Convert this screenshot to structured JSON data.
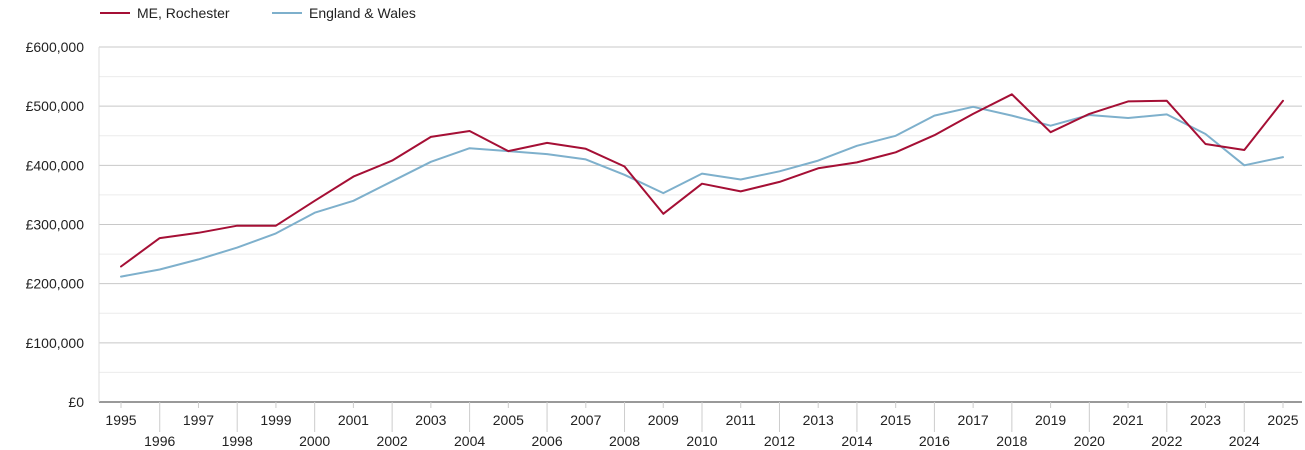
{
  "chart_data": {
    "type": "line",
    "title": "",
    "xlabel": "",
    "ylabel": "",
    "x": [
      1995,
      1996,
      1997,
      1998,
      1999,
      2000,
      2001,
      2002,
      2003,
      2004,
      2005,
      2006,
      2007,
      2008,
      2009,
      2010,
      2011,
      2012,
      2013,
      2014,
      2015,
      2016,
      2017,
      2018,
      2019,
      2020,
      2021,
      2022,
      2023,
      2024,
      2025
    ],
    "xtick_labels": [
      "1995",
      "1996",
      "1997",
      "1998",
      "1999",
      "2000",
      "2001",
      "2002",
      "2003",
      "2004",
      "2005",
      "2006",
      "2007",
      "2008",
      "2009",
      "2010",
      "2011",
      "2012",
      "2013",
      "2014",
      "2015",
      "2016",
      "2017",
      "2018",
      "2019",
      "2020",
      "2021",
      "2022",
      "2023",
      "2024",
      "2025"
    ],
    "ylim": [
      0,
      600000
    ],
    "ytick_values": [
      0,
      100000,
      200000,
      300000,
      400000,
      500000,
      600000
    ],
    "ytick_labels": [
      "£0",
      "£100,000",
      "£200,000",
      "£300,000",
      "£400,000",
      "£500,000",
      "£600,000"
    ],
    "grid": true,
    "legend_position": "top-left",
    "series": [
      {
        "name": "ME, Rochester",
        "color": "#a50f35",
        "values": [
          229000,
          277000,
          286000,
          298000,
          298000,
          340000,
          381000,
          408000,
          448000,
          458000,
          424000,
          438000,
          428000,
          398000,
          318000,
          369000,
          356000,
          372000,
          395000,
          405000,
          422000,
          451000,
          487000,
          520000,
          456000,
          487000,
          508000,
          509000,
          436000,
          426000,
          509000
        ]
      },
      {
        "name": "England & Wales",
        "color": "#7eb0cc",
        "values": [
          212000,
          224000,
          241000,
          261000,
          285000,
          320000,
          340000,
          373000,
          406000,
          429000,
          424000,
          419000,
          410000,
          384000,
          353000,
          386000,
          376000,
          390000,
          408000,
          433000,
          450000,
          484000,
          499000,
          484000,
          467000,
          485000,
          480000,
          486000,
          453000,
          400000,
          414000
        ]
      }
    ]
  }
}
